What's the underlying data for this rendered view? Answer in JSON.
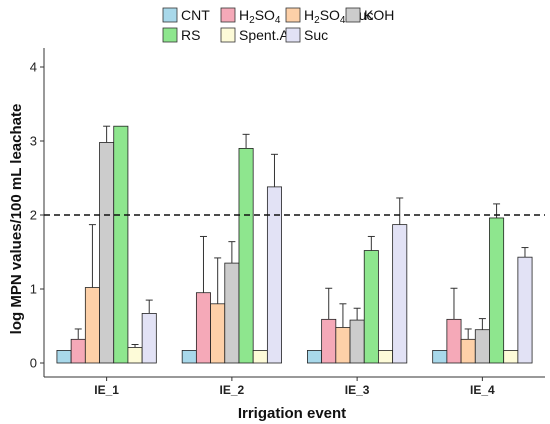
{
  "chart_data": {
    "type": "bar",
    "title": "",
    "xlabel": "Irrigation event",
    "ylabel": "log MPN values/100 mL leachate",
    "ylim": [
      0,
      4.2
    ],
    "yticks": [
      "0",
      "1",
      "2",
      "3",
      "4"
    ],
    "categories": [
      "IE_1",
      "IE_2",
      "IE_3",
      "IE_4"
    ],
    "reference_line": {
      "value": 2,
      "style": "dashed"
    },
    "legend_position": "top",
    "series": [
      {
        "name": "CNT",
        "name_sub": "",
        "name_suffix": "",
        "color": "#a8d8ea",
        "values": [
          0.17,
          0.17,
          0.17,
          0.17
        ],
        "errors": [
          0,
          0,
          0,
          0
        ]
      },
      {
        "name": "H",
        "name_sub": "2",
        "name_suffix": "SO",
        "name_sub2": "4",
        "color": "#f5a9b8",
        "values": [
          0.32,
          0.95,
          0.59,
          0.59
        ],
        "errors": [
          0.14,
          0.76,
          0.42,
          0.42
        ]
      },
      {
        "name": "H",
        "name_sub": "2",
        "name_suffix": "SO",
        "name_sub2": "4",
        "name_tail": "/Suc",
        "color": "#fdd0a8",
        "values": [
          1.02,
          0.8,
          0.48,
          0.32
        ],
        "errors": [
          0.85,
          0.62,
          0.32,
          0.14
        ]
      },
      {
        "name": "KOH",
        "name_sub": "",
        "name_suffix": "",
        "color": "#cccccc",
        "values": [
          2.98,
          1.35,
          0.58,
          0.45
        ],
        "errors": [
          0.22,
          0.29,
          0.16,
          0.15
        ]
      },
      {
        "name": "RS",
        "name_sub": "",
        "name_suffix": "",
        "color": "#8ee68e",
        "values": [
          3.2,
          2.9,
          1.52,
          1.96
        ],
        "errors": [
          0,
          0.19,
          0.19,
          0.19
        ]
      },
      {
        "name": "Spent.A",
        "name_sub": "",
        "name_suffix": "",
        "color": "#fdfbd8",
        "values": [
          0.21,
          0.17,
          0.17,
          0.17
        ],
        "errors": [
          0.04,
          0,
          0,
          0
        ]
      },
      {
        "name": "Suc",
        "name_sub": "",
        "name_suffix": "",
        "color": "#e2e2f5",
        "values": [
          0.67,
          2.38,
          1.87,
          1.43
        ],
        "errors": [
          0.18,
          0.44,
          0.36,
          0.13
        ]
      }
    ]
  }
}
